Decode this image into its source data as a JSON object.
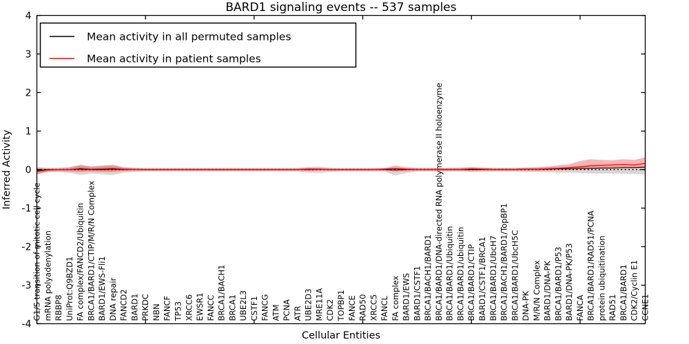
{
  "chart_data": {
    "type": "line",
    "title": "BARD1 signaling events -- 537 samples",
    "xlabel": "Cellular Entities",
    "ylabel": "Inferred Activity",
    "ylim": [
      -4,
      4
    ],
    "yticks": [
      -4,
      -3,
      -2,
      -1,
      0,
      1,
      2,
      3,
      4
    ],
    "xtick_positions": [
      0,
      10,
      20,
      30,
      40,
      50
    ],
    "grid": false,
    "zero_line": "dotted",
    "legend_position": "upper left",
    "categories": [
      "G1/S transition of mitotic cell cycle",
      "mRNA polyadenylation",
      "RBBP8",
      "UniProt:Q9BZD1",
      "FA complex/FANCD2/Ubiquitin",
      "BRCA1/BARD1/CTIP/M/R/N Complex",
      "BARD1/EWS-Fli1",
      "DNA repair",
      "FANCD2",
      "BARD1",
      "PRKDC",
      "NBN",
      "FANCF",
      "TP53",
      "XRCC6",
      "EWSR1",
      "FANCC",
      "BRCA1/BACH1",
      "BRCA1",
      "UBE2L3",
      "CSTF1",
      "FANCG",
      "ATM",
      "PCNA",
      "ATR",
      "UBE2D3",
      "MRE11A",
      "CDK2",
      "TOPBP1",
      "FANCE",
      "RAD50",
      "XRCC5",
      "FANCL",
      "FA complex",
      "BARD1/EWS",
      "BARD1/CSTF1",
      "BRCA1/BACH1/BARD1",
      "BRCA1/BARD1/DNA-directed RNA polymerase II holoenzyme",
      "BRCA1/BARD1/Ubiquitin",
      "BRCA1/BARD1/ubiquitin",
      "BRCA1/BARD1/CTIP",
      "BARD1/CSTF1/BRCA1",
      "BRCA1/BARD1/UbcH7",
      "BRCA1/BACH1/BARD1/TopBP1",
      "BRCA1/BARD1/UbcH5C",
      "DNA-PK",
      "M/R/N Complex",
      "BARD1/DNA-PK",
      "BRCA1/BARD1/P53",
      "BARD1/DNA-PK/P53",
      "FANCA",
      "BRCA1/BARD1/RAD51/PCNA",
      "protein ubiquitination",
      "RAD51",
      "BRCA1/BARD1",
      "CDK2/Cyclin E1",
      "CCNE1"
    ],
    "series": [
      {
        "key": "permuted",
        "name": "Mean activity in all permuted samples",
        "color": "#000000",
        "line_width": 1.0,
        "band_color": "rgba(130,130,130,0.32)",
        "values": [
          -0.02,
          0,
          0,
          0,
          0.01,
          0,
          0,
          0.01,
          0,
          0,
          0,
          0,
          0,
          0,
          0,
          0,
          0,
          0,
          0,
          0,
          0,
          0,
          0,
          0,
          0,
          0,
          0.01,
          0,
          0,
          0,
          0,
          0,
          0,
          -0.01,
          0,
          0,
          0,
          0,
          0,
          0,
          0,
          0,
          0,
          0,
          0,
          0.01,
          0.01,
          0.01,
          0.02,
          0.02,
          0.03,
          0.03,
          0.04,
          0.04,
          0.05,
          0.05,
          0.06
        ],
        "band_upper": [
          0.07,
          0.05,
          0.05,
          0.07,
          0.13,
          0.09,
          0.11,
          0.13,
          0.07,
          0.05,
          0.04,
          0.04,
          0.04,
          0.04,
          0.04,
          0.04,
          0.04,
          0.04,
          0.04,
          0.04,
          0.04,
          0.04,
          0.04,
          0.04,
          0.04,
          0.07,
          0.08,
          0.05,
          0.04,
          0.04,
          0.04,
          0.04,
          0.04,
          0.05,
          0.04,
          0.04,
          0.04,
          0.04,
          0.04,
          0.04,
          0.05,
          0.05,
          0.04,
          0.04,
          0.04,
          0.05,
          0.05,
          0.06,
          0.07,
          0.07,
          0.08,
          0.08,
          0.08,
          0.09,
          0.09,
          0.09,
          0.11
        ],
        "band_lower": [
          -0.12,
          -0.06,
          -0.06,
          -0.08,
          -0.14,
          -0.1,
          -0.12,
          -0.14,
          -0.08,
          -0.06,
          -0.05,
          -0.05,
          -0.05,
          -0.05,
          -0.05,
          -0.05,
          -0.05,
          -0.05,
          -0.05,
          -0.05,
          -0.05,
          -0.05,
          -0.05,
          -0.05,
          -0.05,
          -0.08,
          -0.09,
          -0.06,
          -0.05,
          -0.05,
          -0.05,
          -0.05,
          -0.05,
          -0.15,
          -0.09,
          -0.05,
          -0.05,
          -0.05,
          -0.05,
          -0.05,
          -0.06,
          -0.06,
          -0.05,
          -0.05,
          -0.05,
          -0.06,
          -0.06,
          -0.07,
          -0.08,
          -0.08,
          -0.09,
          -0.1,
          -0.1,
          -0.1,
          -0.11,
          -0.11,
          -0.13
        ]
      },
      {
        "key": "patient",
        "name": "Mean activity in patient samples",
        "color": "#ff0000",
        "line_width": 1.3,
        "band_color": "rgba(255,0,0,0.30)",
        "values": [
          -0.05,
          -0.01,
          0,
          0,
          0.03,
          0.01,
          0.02,
          0.03,
          0.01,
          0,
          0,
          0,
          0,
          0,
          0,
          0,
          0,
          0,
          0,
          0,
          0,
          0,
          0,
          0,
          0,
          0.01,
          0.01,
          0,
          0,
          0,
          0,
          0,
          0.01,
          0.03,
          0.01,
          0,
          0,
          0,
          0,
          0,
          0.02,
          0.01,
          0,
          0,
          0,
          0.01,
          0.01,
          0.02,
          0.03,
          0.05,
          0.07,
          0.1,
          0.11,
          0.12,
          0.13,
          0.12,
          0.16
        ],
        "band_upper": [
          0.04,
          0.03,
          0.03,
          0.05,
          0.11,
          0.07,
          0.09,
          0.11,
          0.05,
          0.04,
          0.03,
          0.03,
          0.03,
          0.03,
          0.03,
          0.03,
          0.03,
          0.03,
          0.03,
          0.03,
          0.03,
          0.03,
          0.03,
          0.03,
          0.03,
          0.05,
          0.04,
          0.03,
          0.03,
          0.03,
          0.03,
          0.03,
          0.04,
          0.11,
          0.06,
          0.04,
          0.04,
          0.04,
          0.04,
          0.05,
          0.07,
          0.05,
          0.04,
          0.04,
          0.04,
          0.05,
          0.06,
          0.08,
          0.11,
          0.14,
          0.22,
          0.27,
          0.25,
          0.24,
          0.27,
          0.25,
          0.32
        ],
        "band_lower": [
          -0.12,
          -0.05,
          -0.04,
          -0.05,
          -0.06,
          -0.05,
          -0.06,
          -0.06,
          -0.04,
          -0.03,
          -0.03,
          -0.03,
          -0.03,
          -0.03,
          -0.03,
          -0.03,
          -0.03,
          -0.03,
          -0.03,
          -0.03,
          -0.03,
          -0.03,
          -0.03,
          -0.03,
          -0.03,
          -0.04,
          -0.03,
          -0.03,
          -0.03,
          -0.03,
          -0.03,
          -0.03,
          -0.03,
          -0.05,
          -0.04,
          -0.03,
          -0.03,
          -0.03,
          -0.03,
          -0.03,
          -0.04,
          -0.03,
          -0.03,
          -0.03,
          -0.03,
          -0.03,
          -0.03,
          -0.02,
          -0.01,
          0.0,
          0.01,
          0.02,
          0.03,
          0.04,
          0.04,
          0.04,
          0.05
        ]
      }
    ]
  }
}
